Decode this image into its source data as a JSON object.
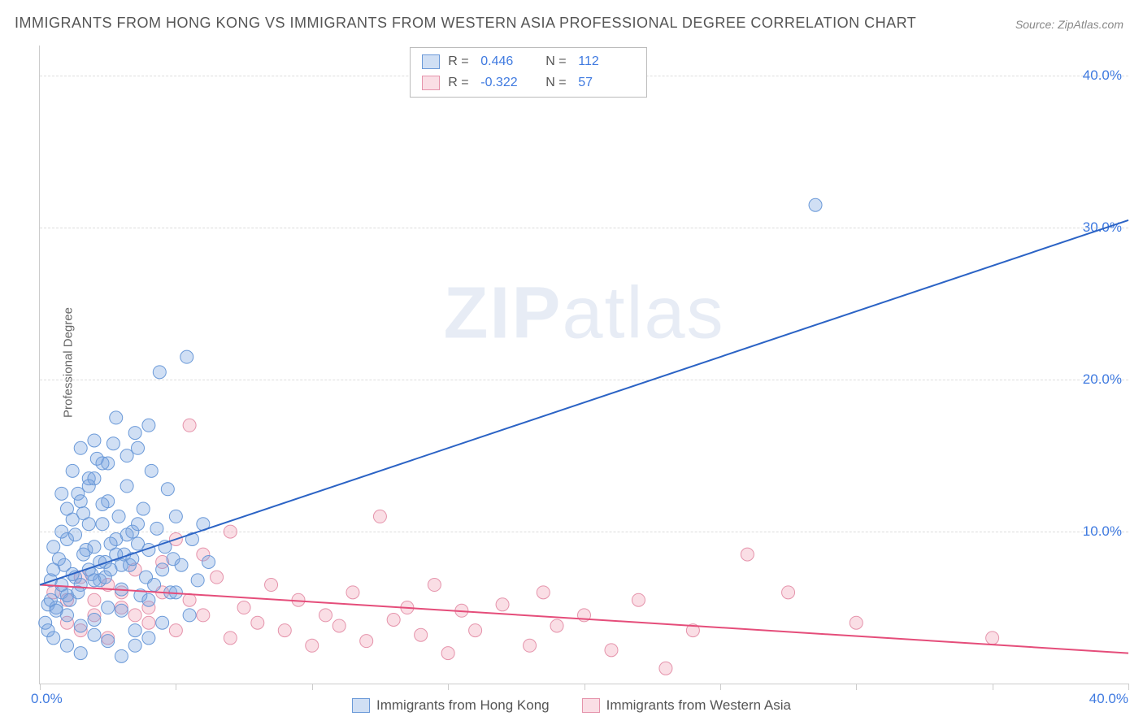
{
  "title": "IMMIGRANTS FROM HONG KONG VS IMMIGRANTS FROM WESTERN ASIA PROFESSIONAL DEGREE CORRELATION CHART",
  "source": "Source: ZipAtlas.com",
  "y_axis_label": "Professional Degree",
  "watermark": "ZIPatlas",
  "chart": {
    "type": "scatter",
    "xlim": [
      0,
      40
    ],
    "ylim": [
      0,
      42
    ],
    "x_ticks": [
      0,
      5,
      10,
      15,
      20,
      25,
      30,
      35,
      40
    ],
    "x_tick_labels": {
      "0": "0.0%",
      "40": "40.0%"
    },
    "y_gridlines": [
      10,
      20,
      30,
      40
    ],
    "y_tick_labels": {
      "10": "10.0%",
      "20": "20.0%",
      "30": "30.0%",
      "40": "40.0%"
    },
    "background_color": "#ffffff",
    "grid_color": "#dddddd",
    "axis_color": "#cccccc"
  },
  "series": {
    "blue": {
      "label": "Immigrants from Hong Kong",
      "fill": "rgba(121,163,224,0.35)",
      "stroke": "#6a99d8",
      "marker_radius": 8,
      "R": "0.446",
      "N": "112",
      "trend": {
        "x1": 0,
        "y1": 6.5,
        "x2": 40,
        "y2": 30.5,
        "color": "#2b63c5",
        "width": 2
      },
      "points": [
        [
          0.3,
          5.2
        ],
        [
          0.4,
          6.8
        ],
        [
          0.5,
          7.5
        ],
        [
          0.6,
          5.0
        ],
        [
          0.7,
          8.2
        ],
        [
          0.8,
          6.0
        ],
        [
          0.9,
          7.8
        ],
        [
          1.0,
          9.5
        ],
        [
          1.1,
          5.5
        ],
        [
          1.2,
          10.8
        ],
        [
          1.3,
          7.0
        ],
        [
          1.4,
          12.5
        ],
        [
          1.5,
          6.5
        ],
        [
          1.6,
          11.2
        ],
        [
          1.7,
          8.8
        ],
        [
          1.8,
          13.5
        ],
        [
          1.9,
          7.2
        ],
        [
          2.0,
          9.0
        ],
        [
          2.1,
          14.8
        ],
        [
          2.2,
          6.8
        ],
        [
          2.3,
          10.5
        ],
        [
          2.4,
          8.0
        ],
        [
          2.5,
          12.0
        ],
        [
          2.6,
          7.5
        ],
        [
          2.7,
          15.8
        ],
        [
          2.8,
          9.5
        ],
        [
          2.9,
          11.0
        ],
        [
          3.0,
          6.2
        ],
        [
          3.1,
          8.5
        ],
        [
          3.2,
          13.0
        ],
        [
          3.3,
          7.8
        ],
        [
          3.4,
          10.0
        ],
        [
          3.5,
          16.5
        ],
        [
          3.6,
          9.2
        ],
        [
          3.7,
          5.8
        ],
        [
          3.8,
          11.5
        ],
        [
          3.9,
          7.0
        ],
        [
          4.0,
          8.8
        ],
        [
          4.1,
          14.0
        ],
        [
          4.2,
          6.5
        ],
        [
          4.3,
          10.2
        ],
        [
          4.4,
          20.5
        ],
        [
          4.5,
          7.5
        ],
        [
          4.6,
          9.0
        ],
        [
          4.7,
          12.8
        ],
        [
          4.8,
          6.0
        ],
        [
          4.9,
          8.2
        ],
        [
          5.0,
          11.0
        ],
        [
          5.2,
          7.8
        ],
        [
          5.4,
          21.5
        ],
        [
          5.6,
          9.5
        ],
        [
          5.8,
          6.8
        ],
        [
          6.0,
          10.5
        ],
        [
          6.2,
          8.0
        ],
        [
          1.0,
          4.5
        ],
        [
          1.5,
          3.8
        ],
        [
          2.0,
          4.2
        ],
        [
          2.5,
          5.0
        ],
        [
          3.0,
          4.8
        ],
        [
          3.5,
          3.5
        ],
        [
          4.0,
          5.5
        ],
        [
          4.5,
          4.0
        ],
        [
          5.0,
          6.0
        ],
        [
          5.5,
          4.5
        ],
        [
          0.5,
          3.0
        ],
        [
          1.0,
          2.5
        ],
        [
          1.5,
          2.0
        ],
        [
          2.0,
          3.2
        ],
        [
          2.5,
          2.8
        ],
        [
          3.0,
          1.8
        ],
        [
          3.5,
          2.5
        ],
        [
          4.0,
          3.0
        ],
        [
          0.2,
          4.0
        ],
        [
          0.3,
          3.5
        ],
        [
          0.4,
          5.5
        ],
        [
          0.6,
          4.8
        ],
        [
          0.8,
          6.5
        ],
        [
          1.0,
          5.8
        ],
        [
          1.2,
          7.2
        ],
        [
          1.4,
          6.0
        ],
        [
          1.6,
          8.5
        ],
        [
          1.8,
          7.5
        ],
        [
          2.0,
          6.8
        ],
        [
          2.2,
          8.0
        ],
        [
          2.4,
          7.0
        ],
        [
          2.6,
          9.2
        ],
        [
          2.8,
          8.5
        ],
        [
          3.0,
          7.8
        ],
        [
          3.2,
          9.8
        ],
        [
          3.4,
          8.2
        ],
        [
          3.6,
          10.5
        ],
        [
          0.5,
          9.0
        ],
        [
          0.8,
          10.0
        ],
        [
          1.0,
          11.5
        ],
        [
          1.3,
          9.8
        ],
        [
          1.5,
          12.0
        ],
        [
          1.8,
          10.5
        ],
        [
          2.0,
          13.5
        ],
        [
          2.3,
          11.8
        ],
        [
          2.5,
          14.5
        ],
        [
          3.6,
          15.5
        ],
        [
          4.0,
          17.0
        ],
        [
          0.8,
          12.5
        ],
        [
          1.2,
          14.0
        ],
        [
          1.5,
          15.5
        ],
        [
          1.8,
          13.0
        ],
        [
          2.0,
          16.0
        ],
        [
          2.3,
          14.5
        ],
        [
          2.8,
          17.5
        ],
        [
          3.2,
          15.0
        ],
        [
          28.5,
          31.5
        ]
      ]
    },
    "pink": {
      "label": "Immigrants from Western Asia",
      "fill": "rgba(240,160,180,0.35)",
      "stroke": "#e593ab",
      "marker_radius": 8,
      "R": "-0.322",
      "N": "57",
      "trend": {
        "x1": 0,
        "y1": 6.5,
        "x2": 40,
        "y2": 2.0,
        "color": "#e54d7a",
        "width": 2
      },
      "points": [
        [
          0.5,
          6.0
        ],
        [
          1.0,
          5.5
        ],
        [
          1.5,
          7.0
        ],
        [
          2.0,
          4.5
        ],
        [
          2.5,
          6.5
        ],
        [
          3.0,
          5.0
        ],
        [
          3.5,
          7.5
        ],
        [
          4.0,
          4.0
        ],
        [
          4.5,
          6.0
        ],
        [
          5.0,
          3.5
        ],
        [
          5.5,
          5.5
        ],
        [
          6.0,
          4.5
        ],
        [
          6.5,
          7.0
        ],
        [
          7.0,
          3.0
        ],
        [
          7.5,
          5.0
        ],
        [
          8.0,
          4.0
        ],
        [
          8.5,
          6.5
        ],
        [
          9.0,
          3.5
        ],
        [
          9.5,
          5.5
        ],
        [
          10.0,
          2.5
        ],
        [
          10.5,
          4.5
        ],
        [
          11.0,
          3.8
        ],
        [
          11.5,
          6.0
        ],
        [
          12.0,
          2.8
        ],
        [
          12.5,
          11.0
        ],
        [
          13.0,
          4.2
        ],
        [
          13.5,
          5.0
        ],
        [
          14.0,
          3.2
        ],
        [
          14.5,
          6.5
        ],
        [
          15.0,
          2.0
        ],
        [
          15.5,
          4.8
        ],
        [
          16.0,
          3.5
        ],
        [
          17.0,
          5.2
        ],
        [
          18.0,
          2.5
        ],
        [
          18.5,
          6.0
        ],
        [
          19.0,
          3.8
        ],
        [
          20.0,
          4.5
        ],
        [
          21.0,
          2.2
        ],
        [
          22.0,
          5.5
        ],
        [
          23.0,
          1.0
        ],
        [
          24.0,
          3.5
        ],
        [
          26.0,
          8.5
        ],
        [
          27.5,
          6.0
        ],
        [
          30.0,
          4.0
        ],
        [
          35.0,
          3.0
        ],
        [
          1.0,
          4.0
        ],
        [
          1.5,
          3.5
        ],
        [
          2.0,
          5.5
        ],
        [
          2.5,
          3.0
        ],
        [
          3.0,
          6.0
        ],
        [
          3.5,
          4.5
        ],
        [
          4.0,
          5.0
        ],
        [
          5.5,
          17.0
        ],
        [
          4.5,
          8.0
        ],
        [
          5.0,
          9.5
        ],
        [
          6.0,
          8.5
        ],
        [
          7.0,
          10.0
        ]
      ]
    }
  },
  "legend_top": {
    "r_label": "R =",
    "n_label": "N ="
  }
}
